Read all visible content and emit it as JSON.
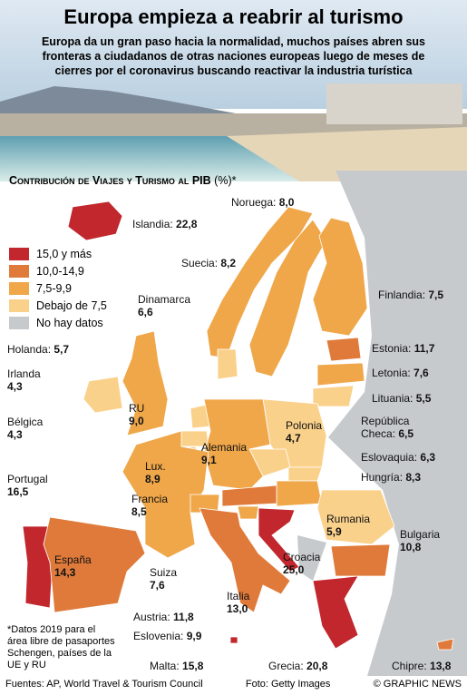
{
  "header": {
    "title": "Europa empieza a reabrir al turismo",
    "subtitle": "Europa da un gran paso hacia la normalidad, muchos países abren sus fronteras a ciudadanos de otras naciones europeas luego de meses de cierres por el coronavirus buscando reactivar la industria turística"
  },
  "map": {
    "heading": "Contribución de Viajes y Turismo al PIB",
    "unit": "(%)*",
    "legend": [
      {
        "label": "15,0 y más",
        "color": "#c1272d"
      },
      {
        "label": "10,0-14,9",
        "color": "#df7a3a"
      },
      {
        "label": "7,5-9,9",
        "color": "#efa74a"
      },
      {
        "label": "Debajo de 7,5",
        "color": "#fad18b"
      },
      {
        "label": "No hay datos",
        "color": "#c6cacd"
      }
    ],
    "countries": {
      "names": [
        "Islandia:",
        "Noruega:",
        "Suecia:",
        "Dinamarca",
        "Finlandia:",
        "Holanda:",
        "Estonia:",
        "Irlanda",
        "Letonia:",
        "RU",
        "Lituania:",
        "Bélgica",
        "Polonia",
        "República Checa:",
        "Alemania",
        "Lux.",
        "Eslovaquia:",
        "Hungría:",
        "Portugal",
        "Francia",
        "Rumania",
        "Bulgaria",
        "España",
        "Croacia",
        "Suiza",
        "Italia",
        "Austria:",
        "Eslovenia:",
        "Malta:",
        "Grecia:",
        "Chipre:"
      ],
      "values": [
        22.8,
        8.0,
        8.2,
        6.6,
        7.5,
        5.7,
        11.7,
        4.3,
        7.6,
        9.0,
        5.5,
        4.3,
        4.7,
        6.5,
        9.1,
        8.9,
        6.3,
        8.3,
        16.5,
        8.5,
        5.9,
        10.8,
        14.3,
        25.0,
        7.6,
        13.0,
        11.8,
        9.9,
        15.8,
        20.8,
        13.8
      ],
      "value_labels": [
        "22,8",
        "8,0",
        "8,2",
        "6,6",
        "7,5",
        "5,7",
        "11,7",
        "4,3",
        "7,6",
        "9,0",
        "5,5",
        "4,3",
        "4,7",
        "6,5",
        "9,1",
        "8,9",
        "6,3",
        "8,3",
        "16,5",
        "8,5",
        "5,9",
        "10,8",
        "14,3",
        "25,0",
        "7,6",
        "13,0",
        "11,8",
        "9,9",
        "15,8",
        "20,8",
        "13,8"
      ],
      "colors": [
        "#c1272d",
        "#efa74a",
        "#efa74a",
        "#fad18b",
        "#efa74a",
        "#fad18b",
        "#df7a3a",
        "#fad18b",
        "#efa74a",
        "#efa74a",
        "#fad18b",
        "#fad18b",
        "#fad18b",
        "#fad18b",
        "#efa74a",
        "#efa74a",
        "#fad18b",
        "#efa74a",
        "#c1272d",
        "#efa74a",
        "#fad18b",
        "#df7a3a",
        "#df7a3a",
        "#c1272d",
        "#efa74a",
        "#df7a3a",
        "#df7a3a",
        "#efa74a",
        "#c1272d",
        "#c1272d",
        "#df7a3a"
      ]
    }
  },
  "footnote": "*Datos 2019 para el área libre de pasaportes Schengen, países de la UE y RU",
  "footer": {
    "sources": "Fuentes: AP, World Travel & Tourism Council",
    "photo": "Foto: Getty Images",
    "credit": "© GRAPHIC NEWS"
  }
}
